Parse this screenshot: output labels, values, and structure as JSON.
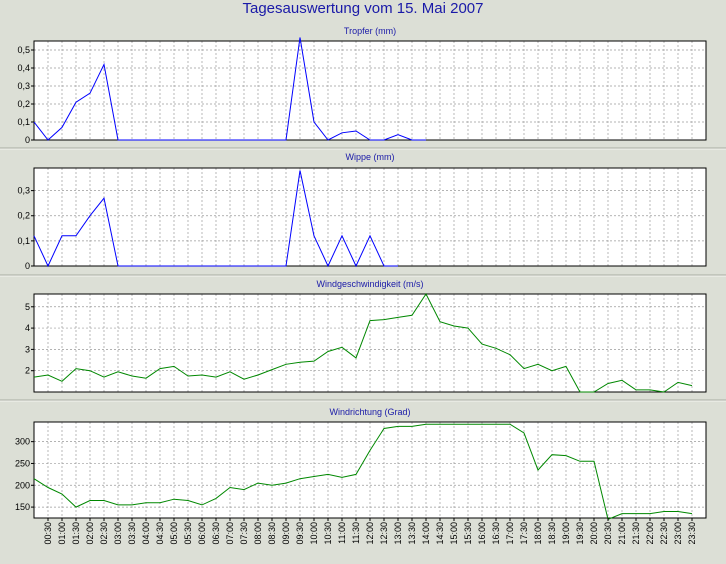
{
  "title": "Tagesauswertung vom 15. Mai 2007",
  "chart_data": [
    {
      "type": "line",
      "title": "Tropfer (mm)",
      "color": "#0000ff",
      "x": [
        "00:00",
        "00:30",
        "01:00",
        "01:30",
        "02:00",
        "02:30",
        "03:00",
        "03:30",
        "04:00",
        "04:30",
        "05:00",
        "05:30",
        "06:00",
        "06:30",
        "07:00",
        "07:30",
        "08:00",
        "08:30",
        "09:00",
        "09:30",
        "10:00",
        "10:30",
        "11:00",
        "11:30",
        "12:00",
        "12:30",
        "13:00",
        "13:30",
        "14:00"
      ],
      "values": [
        0.1,
        0.0,
        0.07,
        0.21,
        0.26,
        0.42,
        0.0,
        0.0,
        0.0,
        0.0,
        0.0,
        0.0,
        0.0,
        0.0,
        0.0,
        0.0,
        0.0,
        0.0,
        0.0,
        0.57,
        0.1,
        0.0,
        0.04,
        0.05,
        0.0,
        0.0,
        0.03,
        0.0,
        0.0
      ],
      "ylim": [
        0,
        0.55
      ],
      "yticks": [
        "0",
        "0,1",
        "0,2",
        "0,3",
        "0,4",
        "0,5"
      ],
      "ytick_values": [
        0,
        0.1,
        0.2,
        0.3,
        0.4,
        0.5
      ]
    },
    {
      "type": "line",
      "title": "Wippe (mm)",
      "color": "#0000ff",
      "x": [
        "00:00",
        "00:30",
        "01:00",
        "01:30",
        "02:00",
        "02:30",
        "03:00",
        "03:30",
        "04:00",
        "04:30",
        "05:00",
        "05:30",
        "06:00",
        "06:30",
        "07:00",
        "07:30",
        "08:00",
        "08:30",
        "09:00",
        "09:30",
        "10:00",
        "10:30",
        "11:00",
        "11:30",
        "12:00",
        "12:30",
        "13:00"
      ],
      "values": [
        0.12,
        0.0,
        0.12,
        0.12,
        0.2,
        0.27,
        0.0,
        0.0,
        0.0,
        0.0,
        0.0,
        0.0,
        0.0,
        0.0,
        0.0,
        0.0,
        0.0,
        0.0,
        0.0,
        0.38,
        0.12,
        0.0,
        0.12,
        0.0,
        0.12,
        0.0,
        0.0
      ],
      "ylim": [
        0,
        0.39
      ],
      "yticks": [
        "0",
        "0,1",
        "0,2",
        "0,3"
      ],
      "ytick_values": [
        0,
        0.1,
        0.2,
        0.3
      ]
    },
    {
      "type": "line",
      "title": "Windgeschwindigkeit (m/s)",
      "color": "#008800",
      "x": [
        "00:00",
        "00:30",
        "01:00",
        "01:30",
        "02:00",
        "02:30",
        "03:00",
        "03:30",
        "04:00",
        "04:30",
        "05:00",
        "05:30",
        "06:00",
        "06:30",
        "07:00",
        "07:30",
        "08:00",
        "08:30",
        "09:00",
        "09:30",
        "10:00",
        "10:30",
        "11:00",
        "11:30",
        "12:00",
        "12:30",
        "13:00",
        "13:30",
        "14:00",
        "14:30",
        "15:00",
        "15:30",
        "16:00",
        "16:30",
        "17:00",
        "17:30",
        "18:00",
        "18:30",
        "19:00",
        "19:30",
        "20:00",
        "20:30",
        "21:00",
        "21:30",
        "22:00",
        "22:30",
        "23:00",
        "23:30"
      ],
      "values": [
        1.7,
        1.8,
        1.5,
        2.1,
        2.0,
        1.7,
        1.95,
        1.75,
        1.65,
        2.1,
        2.2,
        1.75,
        1.8,
        1.7,
        1.95,
        1.6,
        1.8,
        2.05,
        2.3,
        2.4,
        2.45,
        2.9,
        3.1,
        2.6,
        4.35,
        4.4,
        4.5,
        4.6,
        5.6,
        4.3,
        4.1,
        4.0,
        3.25,
        3.05,
        2.75,
        2.1,
        2.3,
        2.0,
        2.2,
        1.0,
        1.0,
        1.4,
        1.55,
        1.1,
        1.1,
        1.0,
        1.45,
        1.3
      ],
      "ylim": [
        1.0,
        5.6
      ],
      "yticks": [
        "2",
        "3",
        "4",
        "5"
      ],
      "ytick_values": [
        2,
        3,
        4,
        5
      ]
    },
    {
      "type": "line",
      "title": "Windrichtung (Grad)",
      "color": "#008800",
      "x": [
        "00:00",
        "00:30",
        "01:00",
        "01:30",
        "02:00",
        "02:30",
        "03:00",
        "03:30",
        "04:00",
        "04:30",
        "05:00",
        "05:30",
        "06:00",
        "06:30",
        "07:00",
        "07:30",
        "08:00",
        "08:30",
        "09:00",
        "09:30",
        "10:00",
        "10:30",
        "11:00",
        "11:30",
        "12:00",
        "12:30",
        "13:00",
        "13:30",
        "14:00",
        "14:30",
        "15:00",
        "15:30",
        "16:00",
        "16:30",
        "17:00",
        "17:30",
        "18:00",
        "18:30",
        "19:00",
        "19:30",
        "20:00",
        "20:30",
        "21:00",
        "21:30",
        "22:00",
        "22:30",
        "23:00",
        "23:30"
      ],
      "values": [
        215,
        195,
        180,
        150,
        165,
        165,
        155,
        155,
        160,
        160,
        168,
        165,
        155,
        170,
        195,
        190,
        205,
        200,
        205,
        215,
        220,
        225,
        218,
        225,
        280,
        330,
        335,
        335,
        340,
        340,
        340,
        340,
        340,
        340,
        340,
        320,
        235,
        270,
        268,
        255,
        255,
        122,
        135,
        135,
        135,
        140,
        140,
        135
      ],
      "ylim": [
        125,
        345
      ],
      "yticks": [
        "150",
        "200",
        "250",
        "300"
      ],
      "ytick_values": [
        150,
        200,
        250,
        300
      ]
    }
  ],
  "x_tick_labels": [
    "00:30",
    "01:00",
    "01:30",
    "02:00",
    "02:30",
    "03:00",
    "03:30",
    "04:00",
    "04:30",
    "05:00",
    "05:30",
    "06:00",
    "06:30",
    "07:00",
    "07:30",
    "08:00",
    "08:30",
    "09:00",
    "09:30",
    "10:00",
    "10:30",
    "11:00",
    "11:30",
    "12:00",
    "12:30",
    "13:00",
    "13:30",
    "14:00",
    "14:30",
    "15:00",
    "15:30",
    "16:00",
    "16:30",
    "17:00",
    "17:30",
    "18:00",
    "18:30",
    "19:00",
    "19:30",
    "20:00",
    "20:30",
    "21:00",
    "21:30",
    "22:00",
    "22:30",
    "23:00",
    "23:30"
  ]
}
